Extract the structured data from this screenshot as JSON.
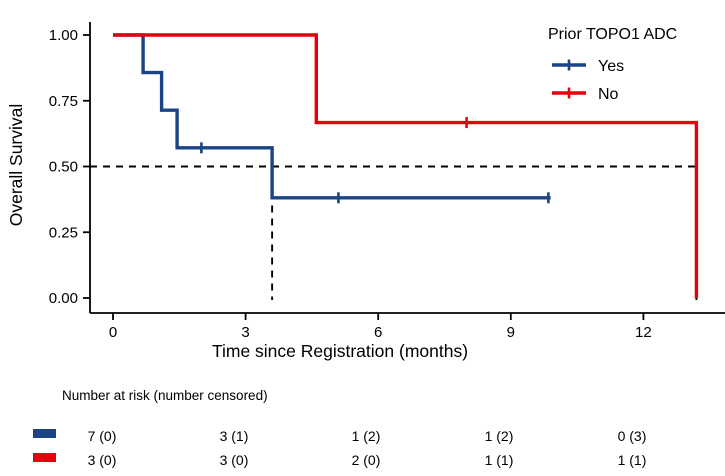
{
  "chart_data": {
    "type": "line",
    "subtype": "kaplan-meier-step",
    "title": "",
    "xlabel": "Time since Registration (months)",
    "ylabel": "Overall Survival",
    "xlim": [
      0,
      13.85
    ],
    "ylim": [
      0,
      1
    ],
    "x_ticks": [
      0,
      3,
      6,
      9,
      12
    ],
    "y_ticks": [
      {
        "value": 0.0,
        "label": "0.00"
      },
      {
        "value": 0.25,
        "label": "0.25"
      },
      {
        "value": 0.5,
        "label": "0.50"
      },
      {
        "value": 0.75,
        "label": "0.75"
      },
      {
        "value": 1.0,
        "label": "1.00"
      }
    ],
    "grid": false,
    "legend": {
      "title": "Prior TOPO1 ADC",
      "position": "top-right"
    },
    "series": [
      {
        "name": "Yes",
        "color": "#1a4485",
        "steps": [
          [
            0,
            1.0
          ],
          [
            0.68,
            1.0
          ],
          [
            0.68,
            0.857
          ],
          [
            1.1,
            0.857
          ],
          [
            1.1,
            0.714
          ],
          [
            1.45,
            0.714
          ],
          [
            1.45,
            0.571
          ],
          [
            3.6,
            0.571
          ],
          [
            3.6,
            0.381
          ],
          [
            9.9,
            0.381
          ]
        ],
        "censor_marks": [
          [
            2.0,
            0.571
          ],
          [
            5.1,
            0.381
          ],
          [
            9.85,
            0.381
          ]
        ]
      },
      {
        "name": "No",
        "color": "#e8000d",
        "steps": [
          [
            0,
            1.0
          ],
          [
            4.6,
            1.0
          ],
          [
            4.6,
            0.667
          ],
          [
            13.2,
            0.667
          ],
          [
            13.2,
            0.0
          ]
        ],
        "censor_marks": [
          [
            8.0,
            0.667
          ]
        ]
      }
    ],
    "annotations": {
      "median_reference_survival": 0.5,
      "median_times_months": [
        3.6,
        13.2
      ],
      "line_style": "dashed",
      "line_color": "#000000"
    }
  },
  "risk_table": {
    "header": "Number at risk (number censored)",
    "times": [
      0,
      3,
      6,
      9,
      12
    ],
    "rows": [
      {
        "group": "Yes",
        "color": "#1a4485",
        "values": [
          "7 (0)",
          "3 (1)",
          "1 (2)",
          "1 (2)",
          "0 (3)"
        ]
      },
      {
        "group": "No",
        "color": "#e8000d",
        "values": [
          "3 (0)",
          "3 (0)",
          "2 (0)",
          "1 (1)",
          "1 (1)"
        ]
      }
    ]
  }
}
